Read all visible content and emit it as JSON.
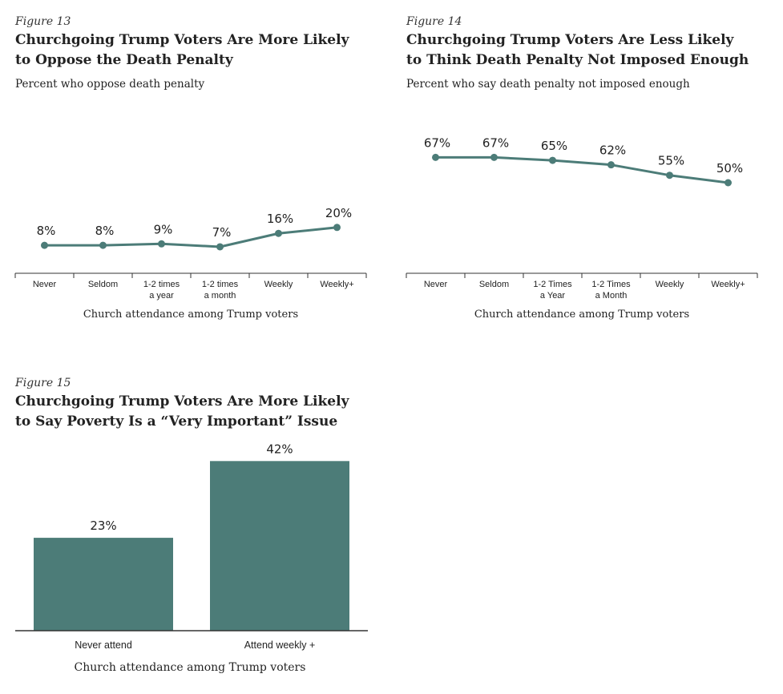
{
  "colors": {
    "series": "#4c7c78",
    "axis": "#333333"
  },
  "figures": [
    {
      "label": "Figure 13",
      "title_line1": "Churchgoing Trump Voters Are More Likely",
      "title_line2": "to Oppose the Death Penalty",
      "subtitle": "Percent who oppose death penalty"
    },
    {
      "label": "Figure 14",
      "title_line1": "Churchgoing Trump Voters Are Less Likely",
      "title_line2": "to Think Death Penalty Not Imposed Enough",
      "subtitle": "Percent who say death penalty not imposed enough"
    },
    {
      "label": "Figure 15",
      "title_line1": "Churchgoing Trump Voters Are More Likely",
      "title_line2": "to Say Poverty Is a “Very Important” Issue",
      "subtitle": ""
    }
  ],
  "chart_data": [
    {
      "type": "line",
      "title": "Churchgoing Trump Voters Are More Likely to Oppose the Death Penalty",
      "subtitle": "Percent who oppose death penalty",
      "categories": [
        [
          "Never"
        ],
        [
          "Seldom"
        ],
        [
          "1-2 times",
          "a year"
        ],
        [
          "1-2 times",
          "a month"
        ],
        [
          "Weekly"
        ],
        [
          "Weekly+"
        ]
      ],
      "values": [
        8,
        8,
        9,
        7,
        16,
        20
      ],
      "value_labels": [
        "8%",
        "8%",
        "9%",
        "7%",
        "16%",
        "20%"
      ],
      "xlabel": "Church attendance among Trump voters",
      "ylim": [
        0,
        100
      ],
      "grid": false
    },
    {
      "type": "line",
      "title": "Churchgoing Trump Voters Are Less Likely to Think Death Penalty Not Imposed Enough",
      "subtitle": "Percent who say death penalty not imposed enough",
      "categories": [
        [
          "Never"
        ],
        [
          "Seldom"
        ],
        [
          "1-2 Times",
          "a Year"
        ],
        [
          "1-2 Times",
          "a Month"
        ],
        [
          "Weekly"
        ],
        [
          "Weekly+"
        ]
      ],
      "values": [
        67,
        67,
        65,
        62,
        55,
        50
      ],
      "value_labels": [
        "67%",
        "67%",
        "65%",
        "62%",
        "55%",
        "50%"
      ],
      "xlabel": "Church attendance among Trump voters",
      "ylim": [
        0,
        100
      ],
      "grid": false
    },
    {
      "type": "bar",
      "title": "Churchgoing Trump Voters Are More Likely to Say Poverty Is a “Very Important” Issue",
      "categories": [
        "Never attend",
        "Attend weekly +"
      ],
      "values": [
        23,
        42
      ],
      "value_labels": [
        "23%",
        "42%"
      ],
      "xlabel": "Church attendance among Trump voters",
      "ylim": [
        0,
        50
      ],
      "grid": false
    }
  ]
}
